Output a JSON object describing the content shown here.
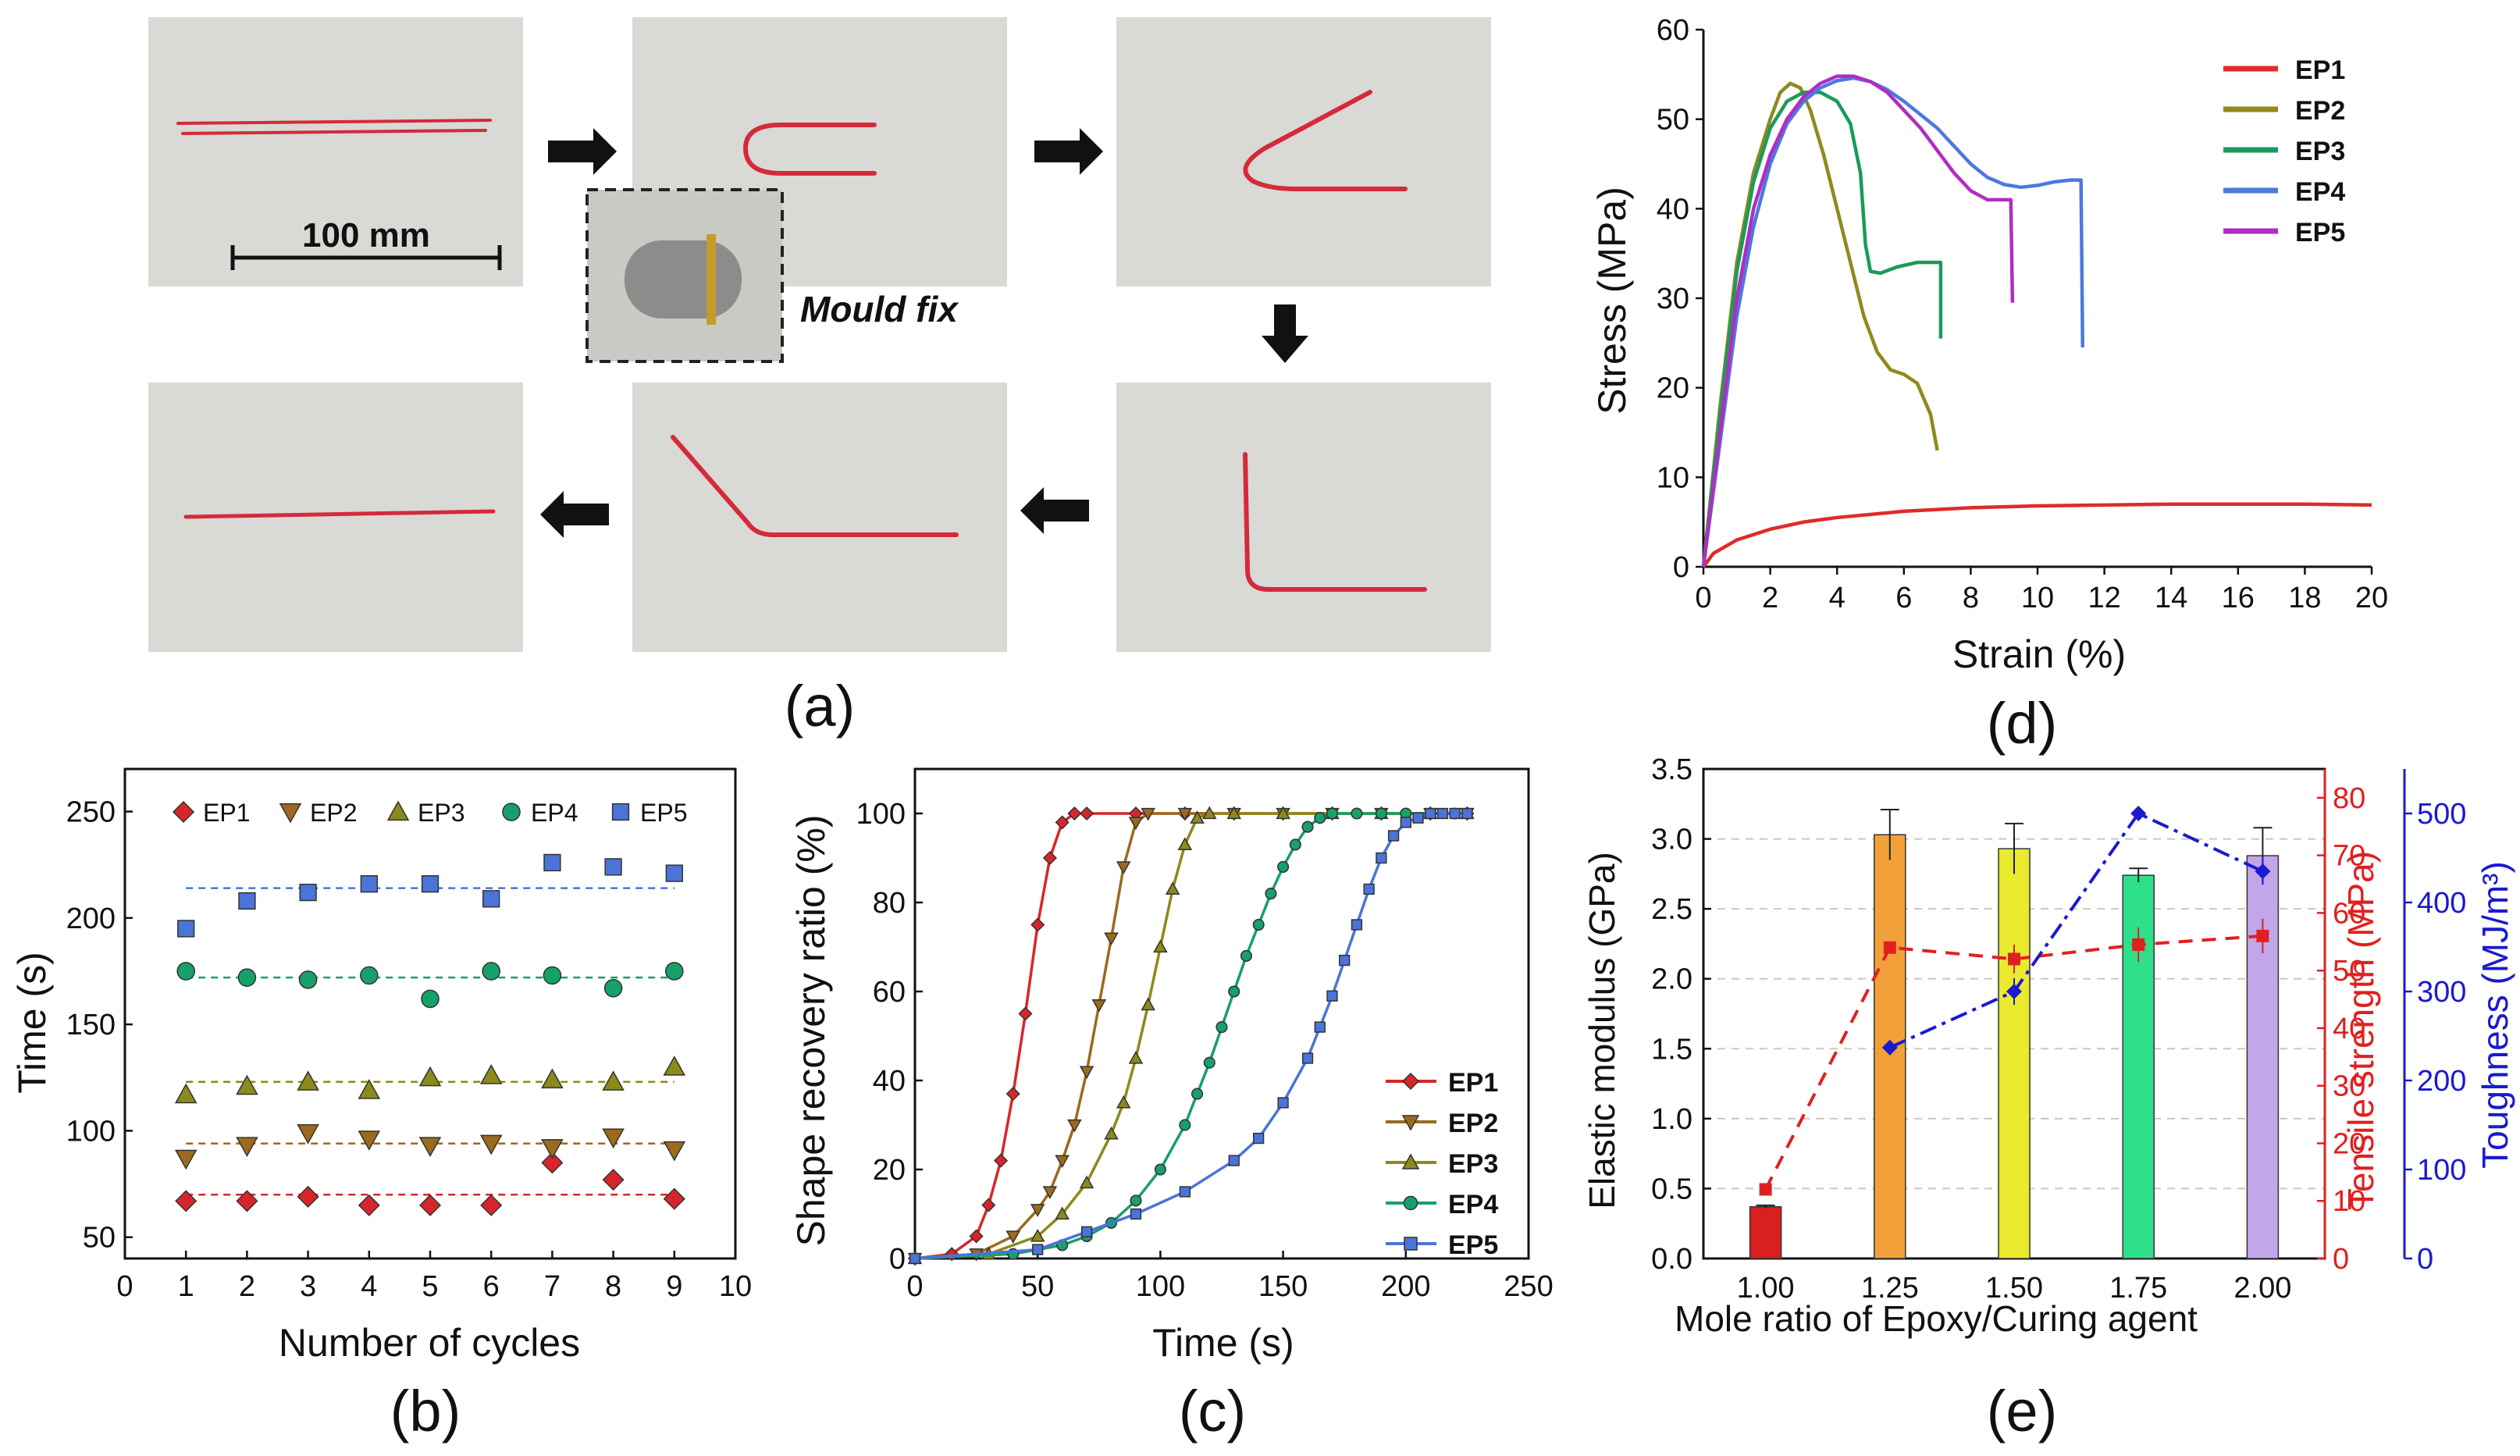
{
  "panel_labels": {
    "a": "(a)",
    "b": "(b)",
    "c": "(c)",
    "d": "(d)",
    "e": "(e)"
  },
  "photos": {
    "scale_label": "100 mm",
    "inset_caption": "Mould fix",
    "photo_bg": "#d9d9d6",
    "specimen_color": "#d42a3a"
  },
  "colors": {
    "EP1": "#d7262b",
    "EP2": "#9c6a1e",
    "EP3": "#8c8a1b",
    "EP4": "#16a06a",
    "EP5": "#4a74d8",
    "d_EP1": "#e02a2a",
    "d_EP2": "#8f8a1c",
    "d_EP3": "#1b9a5c",
    "d_EP4": "#4c79e0",
    "d_EP5": "#b02ec0",
    "red_axis": "#e02020",
    "blue_axis": "#1a1ad0"
  },
  "chart_data": [
    {
      "id": "b",
      "type": "scatter",
      "xlabel": "Number of cycles",
      "ylabel": "Time (s)",
      "xlim": [
        0,
        10
      ],
      "ylim": [
        40,
        270
      ],
      "xticks": [
        "0",
        "1",
        "2",
        "3",
        "4",
        "5",
        "6",
        "7",
        "8",
        "9",
        "10"
      ],
      "yticks": [
        "50",
        "100",
        "150",
        "200",
        "250"
      ],
      "x": [
        1,
        2,
        3,
        4,
        5,
        6,
        7,
        8,
        9
      ],
      "legend": [
        "EP1",
        "EP2",
        "EP3",
        "EP4",
        "EP5"
      ],
      "series": [
        {
          "name": "EP1",
          "marker": "diamond",
          "values": [
            67,
            67,
            69,
            65,
            65,
            65,
            85,
            77,
            68
          ],
          "mean": 70
        },
        {
          "name": "EP2",
          "marker": "triangle-down",
          "values": [
            87,
            93,
            99,
            96,
            93,
            94,
            92,
            97,
            91
          ],
          "mean": 94
        },
        {
          "name": "EP3",
          "marker": "triangle-up",
          "values": [
            117,
            121,
            123,
            119,
            125,
            126,
            124,
            123,
            130
          ],
          "mean": 123
        },
        {
          "name": "EP4",
          "marker": "circle",
          "values": [
            175,
            172,
            171,
            173,
            162,
            175,
            173,
            167,
            175
          ],
          "mean": 172
        },
        {
          "name": "EP5",
          "marker": "square",
          "values": [
            195,
            208,
            212,
            216,
            216,
            209,
            226,
            224,
            221
          ],
          "mean": 214
        }
      ]
    },
    {
      "id": "c",
      "type": "line",
      "xlabel": "Time (s)",
      "ylabel": "Shape recovery ratio (%)",
      "xlim": [
        0,
        250
      ],
      "ylim": [
        0,
        110
      ],
      "xticks": [
        "0",
        "50",
        "100",
        "150",
        "200",
        "250"
      ],
      "yticks": [
        "0",
        "20",
        "40",
        "60",
        "80",
        "100"
      ],
      "series": [
        {
          "name": "EP1",
          "marker": "diamond",
          "x": [
            0,
            15,
            25,
            30,
            35,
            40,
            45,
            50,
            55,
            60,
            65,
            70,
            90,
            110,
            130,
            150,
            170,
            190,
            210,
            225
          ],
          "values": [
            0,
            1,
            5,
            12,
            22,
            37,
            55,
            75,
            90,
            98,
            100,
            100,
            100,
            100,
            100,
            100,
            100,
            100,
            100,
            100
          ]
        },
        {
          "name": "EP2",
          "marker": "triangle-down",
          "x": [
            0,
            25,
            40,
            50,
            55,
            60,
            65,
            70,
            75,
            80,
            85,
            90,
            95,
            110,
            130,
            150,
            170,
            190,
            210,
            225
          ],
          "values": [
            0,
            1,
            5,
            11,
            15,
            22,
            30,
            42,
            57,
            72,
            88,
            98,
            100,
            100,
            100,
            100,
            100,
            100,
            100,
            100
          ]
        },
        {
          "name": "EP3",
          "marker": "triangle-up",
          "x": [
            0,
            30,
            50,
            60,
            70,
            80,
            85,
            90,
            95,
            100,
            105,
            110,
            115,
            120,
            130,
            150,
            170,
            190,
            210,
            225
          ],
          "values": [
            0,
            1,
            5,
            10,
            17,
            28,
            35,
            45,
            57,
            70,
            83,
            93,
            99,
            100,
            100,
            100,
            100,
            100,
            100,
            100
          ]
        },
        {
          "name": "EP4",
          "marker": "circle",
          "x": [
            0,
            40,
            60,
            70,
            80,
            90,
            100,
            110,
            115,
            120,
            125,
            130,
            135,
            140,
            145,
            150,
            155,
            160,
            165,
            170,
            180,
            190,
            200,
            210,
            220,
            225
          ],
          "values": [
            0,
            1,
            3,
            5,
            8,
            13,
            20,
            30,
            37,
            44,
            52,
            60,
            68,
            75,
            82,
            88,
            93,
            97,
            99,
            100,
            100,
            100,
            100,
            100,
            100,
            100
          ]
        },
        {
          "name": "EP5",
          "marker": "square",
          "x": [
            0,
            50,
            70,
            90,
            110,
            130,
            140,
            150,
            160,
            165,
            170,
            175,
            180,
            185,
            190,
            195,
            200,
            205,
            210,
            215,
            220,
            225
          ],
          "values": [
            0,
            2,
            6,
            10,
            15,
            22,
            27,
            35,
            45,
            52,
            59,
            67,
            75,
            83,
            90,
            95,
            98,
            99,
            100,
            100,
            100,
            100
          ]
        }
      ]
    },
    {
      "id": "d",
      "type": "line",
      "xlabel": "Strain (%)",
      "ylabel": "Stress (MPa)",
      "xlim": [
        0,
        20
      ],
      "ylim": [
        0,
        60
      ],
      "xticks": [
        "0",
        "2",
        "4",
        "6",
        "8",
        "10",
        "12",
        "14",
        "16",
        "18",
        "20"
      ],
      "yticks": [
        "0",
        "10",
        "20",
        "30",
        "40",
        "50",
        "60"
      ],
      "legend": [
        "EP1",
        "EP2",
        "EP3",
        "EP4",
        "EP5"
      ],
      "series": [
        {
          "name": "EP1",
          "x": [
            0,
            0.3,
            1,
            2,
            3,
            4,
            6,
            8,
            10,
            12,
            14,
            16,
            18,
            20
          ],
          "values": [
            0,
            1.5,
            3,
            4.2,
            5,
            5.5,
            6.2,
            6.6,
            6.8,
            6.9,
            7,
            7,
            7,
            6.9
          ]
        },
        {
          "name": "EP2",
          "x": [
            0,
            0.5,
            1,
            1.5,
            2,
            2.3,
            2.6,
            2.9,
            3.2,
            3.6,
            4,
            4.4,
            4.8,
            5.2,
            5.6,
            6,
            6.4,
            6.8,
            7.0,
            7.0
          ],
          "values": [
            0,
            18,
            34,
            44,
            50,
            53,
            54,
            53.5,
            51,
            46,
            40,
            34,
            28,
            24,
            22,
            21.5,
            20.5,
            17,
            13,
            13
          ]
        },
        {
          "name": "EP3",
          "x": [
            0,
            0.5,
            1,
            1.5,
            2,
            2.5,
            3,
            3.5,
            4,
            4.4,
            4.7,
            4.85,
            5.0,
            5.3,
            5.8,
            6.4,
            7.0,
            7.1,
            7.1
          ],
          "values": [
            0,
            17,
            33,
            43,
            49,
            52,
            53,
            53,
            52,
            49.5,
            44,
            36,
            33,
            32.8,
            33.5,
            34,
            34,
            34,
            25.5
          ]
        },
        {
          "name": "EP4",
          "x": [
            0,
            0.5,
            1,
            1.5,
            2,
            2.5,
            3,
            3.5,
            4,
            4.5,
            5,
            5.5,
            6,
            6.5,
            7,
            7.5,
            8,
            8.5,
            9,
            9.5,
            10,
            10.5,
            11,
            11.3,
            11.35
          ],
          "values": [
            0,
            14,
            28,
            38,
            45,
            49.5,
            52,
            53.5,
            54.3,
            54.6,
            54.2,
            53.3,
            52,
            50.5,
            49,
            47,
            45,
            43.5,
            42.7,
            42.4,
            42.6,
            43,
            43.2,
            43.2,
            24.5
          ]
        },
        {
          "name": "EP5",
          "x": [
            0,
            0.5,
            1,
            1.5,
            2,
            2.5,
            3,
            3.5,
            4,
            4.5,
            5,
            5.5,
            6,
            6.5,
            7,
            7.5,
            8,
            8.5,
            9.2,
            9.25
          ],
          "values": [
            0,
            15,
            30,
            40,
            46,
            50,
            52.5,
            54,
            54.8,
            54.8,
            54.2,
            53,
            51,
            49,
            46.5,
            44,
            42,
            41,
            41,
            29.5
          ]
        }
      ]
    },
    {
      "id": "e",
      "type": "bar+line",
      "xlabel": "Mole ratio of Epoxy/Curing agent",
      "ylabel_left": "Elastic modulus (GPa)",
      "ylabel_right1": "Tensile strength (MPa)",
      "ylabel_right2": "Toughness (MJ/m³)",
      "categories": [
        "1.00",
        "1.25",
        "1.50",
        "1.75",
        "2.00"
      ],
      "ylim_left": [
        0,
        3.5
      ],
      "ylim_right1": [
        0,
        85
      ],
      "ylim_right2": [
        0,
        550
      ],
      "yticks_left": [
        "0.0",
        "0.5",
        "1.0",
        "1.5",
        "2.0",
        "2.5",
        "3.0",
        "3.5"
      ],
      "yticks_right1": [
        "0",
        "10",
        "20",
        "30",
        "40",
        "50",
        "60",
        "70",
        "80"
      ],
      "yticks_right2": [
        "0",
        "100",
        "200",
        "300",
        "400",
        "500"
      ],
      "series": [
        {
          "name": "Elastic modulus",
          "type": "bar",
          "values": [
            0.37,
            3.03,
            2.93,
            2.74,
            2.88
          ],
          "errors": [
            0.01,
            0.18,
            0.18,
            0.05,
            0.2
          ],
          "colors": [
            "#d82020",
            "#f2a13a",
            "#eaea2e",
            "#2ee08a",
            "#c2a6ea"
          ]
        },
        {
          "name": "Tensile strength",
          "type": "line",
          "values": [
            12,
            54,
            52,
            54.5,
            56
          ],
          "errors": [
            0.5,
            1,
            2.5,
            3,
            3
          ]
        },
        {
          "name": "Toughness",
          "type": "line",
          "values": [
            null,
            237,
            300,
            500,
            435
          ],
          "errors": [
            0,
            8,
            15,
            3,
            15
          ]
        }
      ]
    }
  ]
}
